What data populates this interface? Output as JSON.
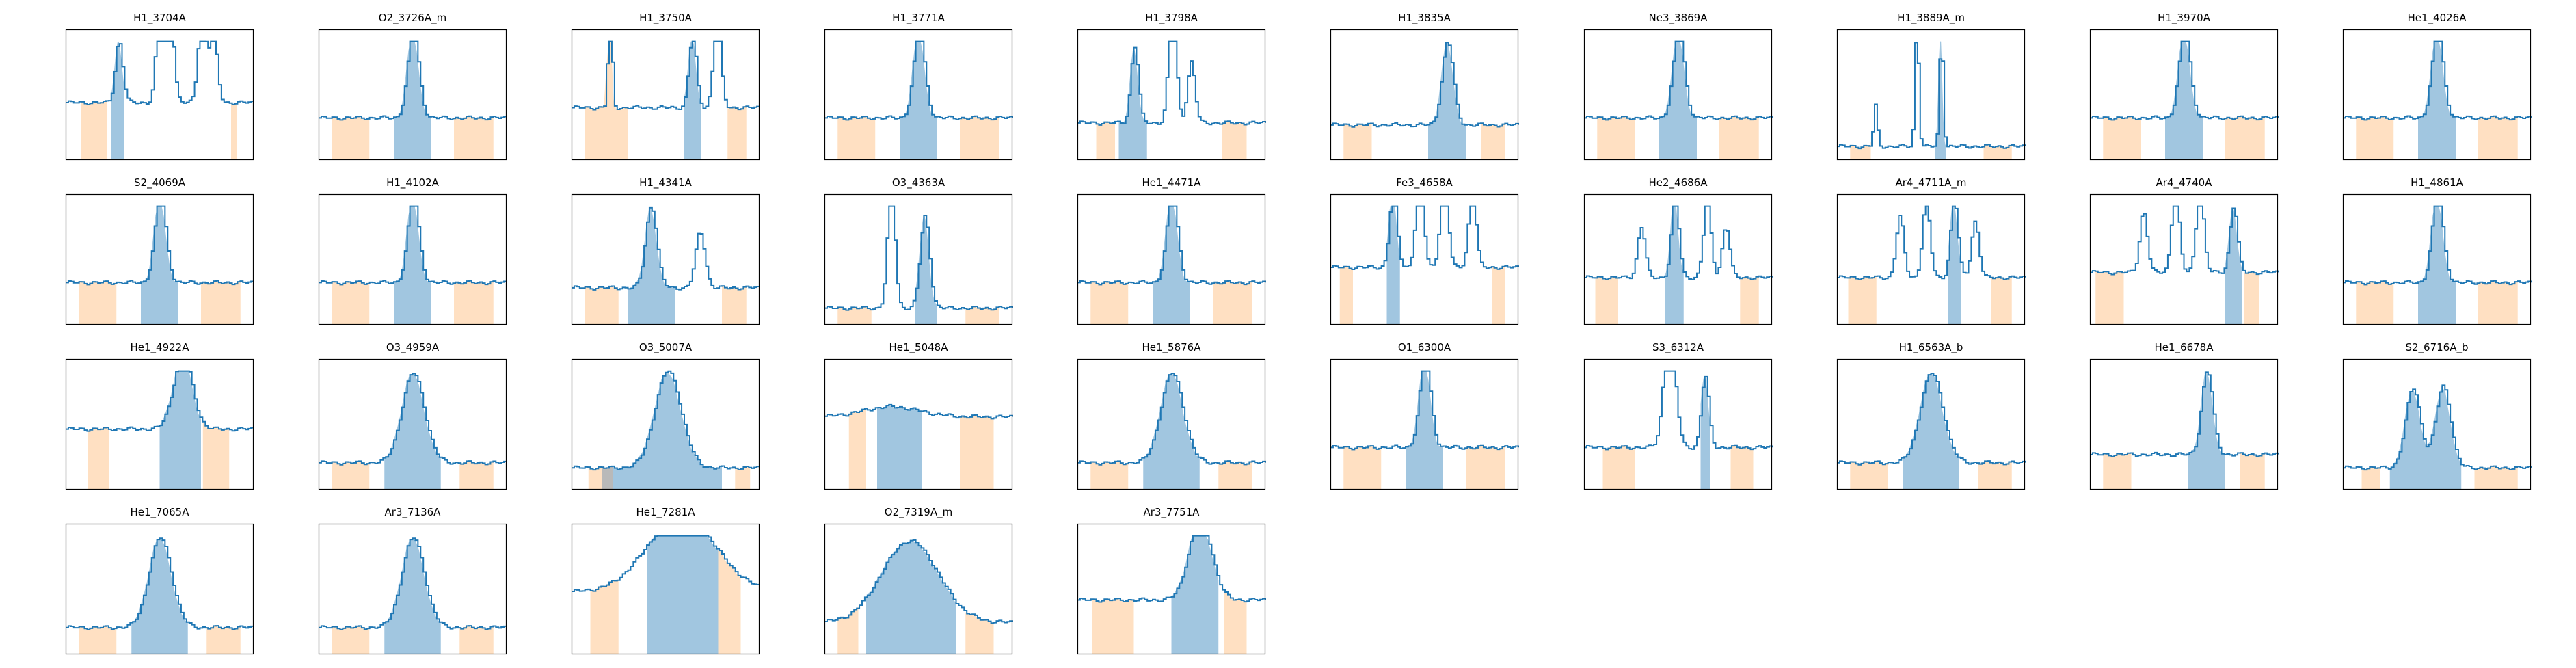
{
  "chart_data": [
    {
      "type": "line",
      "title": "H1_3704A",
      "shape": "h1_3704",
      "flux_color": "#1f77b4",
      "line_band_color": "#1f77b4",
      "continuum_band_color": "#ffbb78"
    },
    {
      "type": "line",
      "title": "O2_3726A_m",
      "shape": "single_mid",
      "flux_color": "#1f77b4",
      "line_band_color": "#1f77b4",
      "continuum_band_color": "#ffbb78"
    },
    {
      "type": "line",
      "title": "H1_3750A",
      "shape": "h1_3750",
      "flux_color": "#1f77b4",
      "line_band_color": "#1f77b4",
      "continuum_band_color": "#ffbb78"
    },
    {
      "type": "line",
      "title": "H1_3771A",
      "shape": "single_mid",
      "flux_color": "#1f77b4",
      "line_band_color": "#1f77b4",
      "continuum_band_color": "#ffbb78"
    },
    {
      "type": "line",
      "title": "H1_3798A",
      "shape": "h1_3798",
      "flux_color": "#1f77b4",
      "line_band_color": "#1f77b4",
      "continuum_band_color": "#ffbb78"
    },
    {
      "type": "line",
      "title": "H1_3835A",
      "shape": "single_right",
      "flux_color": "#1f77b4",
      "line_band_color": "#1f77b4",
      "continuum_band_color": "#ffbb78"
    },
    {
      "type": "line",
      "title": "Ne3_3869A",
      "shape": "single_mid",
      "flux_color": "#1f77b4",
      "line_band_color": "#1f77b4",
      "continuum_band_color": "#ffbb78"
    },
    {
      "type": "line",
      "title": "H1_3889A_m",
      "shape": "h1_3889",
      "flux_color": "#1f77b4",
      "line_band_color": "#1f77b4",
      "continuum_band_color": "#ffbb78"
    },
    {
      "type": "line",
      "title": "H1_3970A",
      "shape": "single_mid",
      "flux_color": "#1f77b4",
      "line_band_color": "#1f77b4",
      "continuum_band_color": "#ffbb78"
    },
    {
      "type": "line",
      "title": "He1_4026A",
      "shape": "single_mid",
      "flux_color": "#1f77b4",
      "line_band_color": "#1f77b4",
      "continuum_band_color": "#ffbb78"
    },
    {
      "type": "line",
      "title": "S2_4069A",
      "shape": "single_mid",
      "flux_color": "#1f77b4",
      "line_band_color": "#1f77b4",
      "continuum_band_color": "#ffbb78"
    },
    {
      "type": "line",
      "title": "H1_4102A",
      "shape": "single_mid",
      "flux_color": "#1f77b4",
      "line_band_color": "#1f77b4",
      "continuum_band_color": "#ffbb78"
    },
    {
      "type": "line",
      "title": "H1_4341A",
      "shape": "h1_4341",
      "flux_color": "#1f77b4",
      "line_band_color": "#1f77b4",
      "continuum_band_color": "#ffbb78"
    },
    {
      "type": "line",
      "title": "O3_4363A",
      "shape": "o3_4363",
      "flux_color": "#1f77b4",
      "line_band_color": "#1f77b4",
      "continuum_band_color": "#ffbb78"
    },
    {
      "type": "line",
      "title": "He1_4471A",
      "shape": "single_mid",
      "flux_color": "#1f77b4",
      "line_band_color": "#1f77b4",
      "continuum_band_color": "#ffbb78"
    },
    {
      "type": "line",
      "title": "Fe3_4658A",
      "shape": "fe3_4658",
      "flux_color": "#1f77b4",
      "line_band_color": "#1f77b4",
      "continuum_band_color": "#ffbb78"
    },
    {
      "type": "line",
      "title": "He2_4686A",
      "shape": "he2_4686",
      "flux_color": "#1f77b4",
      "line_band_color": "#1f77b4",
      "continuum_band_color": "#ffbb78"
    },
    {
      "type": "line",
      "title": "Ar4_4711A_m",
      "shape": "ar4_4711",
      "flux_color": "#1f77b4",
      "line_band_color": "#1f77b4",
      "continuum_band_color": "#ffbb78"
    },
    {
      "type": "line",
      "title": "Ar4_4740A",
      "shape": "ar4_4740",
      "flux_color": "#1f77b4",
      "line_band_color": "#1f77b4",
      "continuum_band_color": "#ffbb78"
    },
    {
      "type": "line",
      "title": "H1_4861A",
      "shape": "single_mid",
      "flux_color": "#1f77b4",
      "line_band_color": "#1f77b4",
      "continuum_band_color": "#ffbb78"
    },
    {
      "type": "line",
      "title": "He1_4922A",
      "shape": "he1_4922",
      "flux_color": "#1f77b4",
      "line_band_color": "#1f77b4",
      "continuum_band_color": "#ffbb78"
    },
    {
      "type": "line",
      "title": "O3_4959A",
      "shape": "broad_mid",
      "flux_color": "#1f77b4",
      "line_band_color": "#1f77b4",
      "continuum_band_color": "#ffbb78"
    },
    {
      "type": "line",
      "title": "O3_5007A",
      "shape": "o3_5007",
      "flux_color": "#1f77b4",
      "line_band_color": "#1f77b4",
      "continuum_band_color": "#ffbb78",
      "masked_band_color": "#7f7f7f"
    },
    {
      "type": "line",
      "title": "He1_5048A",
      "shape": "he1_5048",
      "flux_color": "#1f77b4",
      "line_band_color": "#1f77b4",
      "continuum_band_color": "#ffbb78"
    },
    {
      "type": "line",
      "title": "He1_5876A",
      "shape": "broad_mid",
      "flux_color": "#1f77b4",
      "line_band_color": "#1f77b4",
      "continuum_band_color": "#ffbb78"
    },
    {
      "type": "line",
      "title": "O1_6300A",
      "shape": "single_mid",
      "flux_color": "#1f77b4",
      "line_band_color": "#1f77b4",
      "continuum_band_color": "#ffbb78"
    },
    {
      "type": "line",
      "title": "S3_6312A",
      "shape": "s3_6312",
      "flux_color": "#1f77b4",
      "line_band_color": "#1f77b4",
      "continuum_band_color": "#ffbb78"
    },
    {
      "type": "line",
      "title": "H1_6563A_b",
      "shape": "broad_mid",
      "flux_color": "#1f77b4",
      "line_band_color": "#1f77b4",
      "continuum_band_color": "#ffbb78"
    },
    {
      "type": "line",
      "title": "He1_6678A",
      "shape": "single_right",
      "flux_color": "#1f77b4",
      "line_band_color": "#1f77b4",
      "continuum_band_color": "#ffbb78"
    },
    {
      "type": "line",
      "title": "S2_6716A_b",
      "shape": "s2_6716",
      "flux_color": "#1f77b4",
      "line_band_color": "#1f77b4",
      "continuum_band_color": "#ffbb78"
    },
    {
      "type": "line",
      "title": "He1_7065A",
      "shape": "broad_mid",
      "flux_color": "#1f77b4",
      "line_band_color": "#1f77b4",
      "continuum_band_color": "#ffbb78"
    },
    {
      "type": "line",
      "title": "Ar3_7136A",
      "shape": "broad_mid",
      "flux_color": "#1f77b4",
      "line_band_color": "#1f77b4",
      "continuum_band_color": "#ffbb78"
    },
    {
      "type": "line",
      "title": "He1_7281A",
      "shape": "he1_7281",
      "flux_color": "#1f77b4",
      "line_band_color": "#1f77b4",
      "continuum_band_color": "#ffbb78"
    },
    {
      "type": "line",
      "title": "O2_7319A_m",
      "shape": "o2_7319",
      "flux_color": "#1f77b4",
      "line_band_color": "#1f77b4",
      "continuum_band_color": "#ffbb78"
    },
    {
      "type": "line",
      "title": "Ar3_7751A",
      "shape": "ar3_7751",
      "flux_color": "#1f77b4",
      "line_band_color": "#1f77b4",
      "continuum_band_color": "#ffbb78"
    }
  ]
}
